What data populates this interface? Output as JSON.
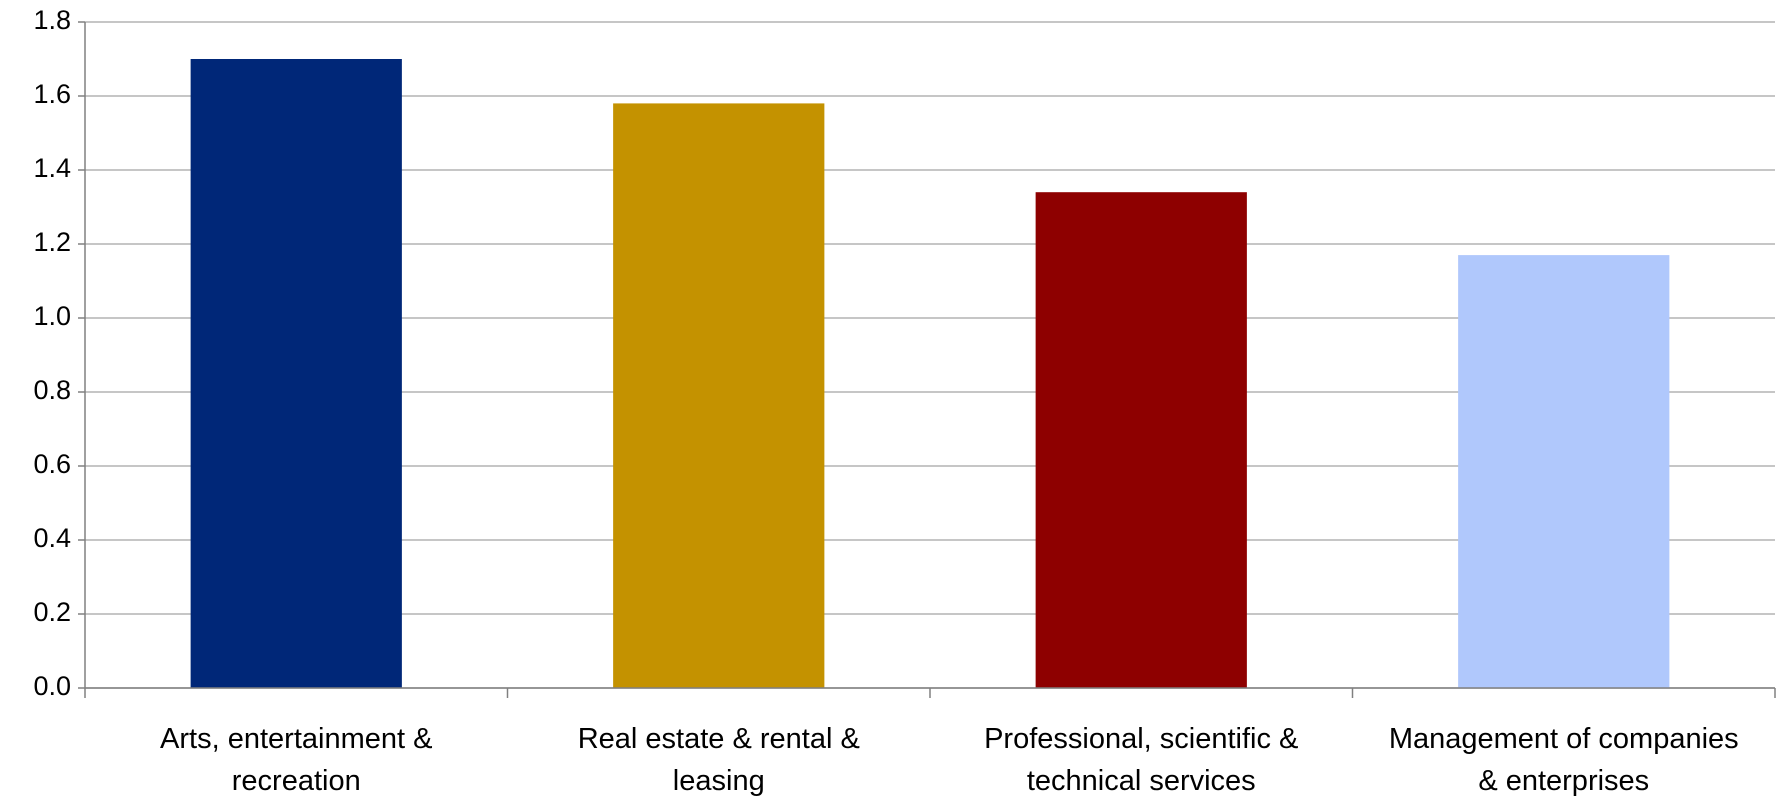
{
  "chart_data": {
    "type": "bar",
    "categories": [
      "Arts, entertainment & recreation",
      "Real estate & rental & leasing",
      "Professional, scientific & technical services",
      "Management of companies & enterprises"
    ],
    "values": [
      1.7,
      1.58,
      1.34,
      1.17
    ],
    "colors": [
      "#002778",
      "#c49200",
      "#8e0000",
      "#b0c8fc"
    ],
    "ylim": [
      0,
      1.8
    ],
    "yticks": [
      {
        "value": 0,
        "label": "0.0"
      },
      {
        "value": 0.2,
        "label": "0.2"
      },
      {
        "value": 0.4,
        "label": "0.4"
      },
      {
        "value": 0.6,
        "label": "0.6"
      },
      {
        "value": 0.8,
        "label": "0.8"
      },
      {
        "value": 1.0,
        "label": "1.0"
      },
      {
        "value": 1.2,
        "label": "1.2"
      },
      {
        "value": 1.4,
        "label": "1.4"
      },
      {
        "value": 1.6,
        "label": "1.6"
      },
      {
        "value": 1.8,
        "label": "1.8"
      }
    ],
    "grid": true
  }
}
